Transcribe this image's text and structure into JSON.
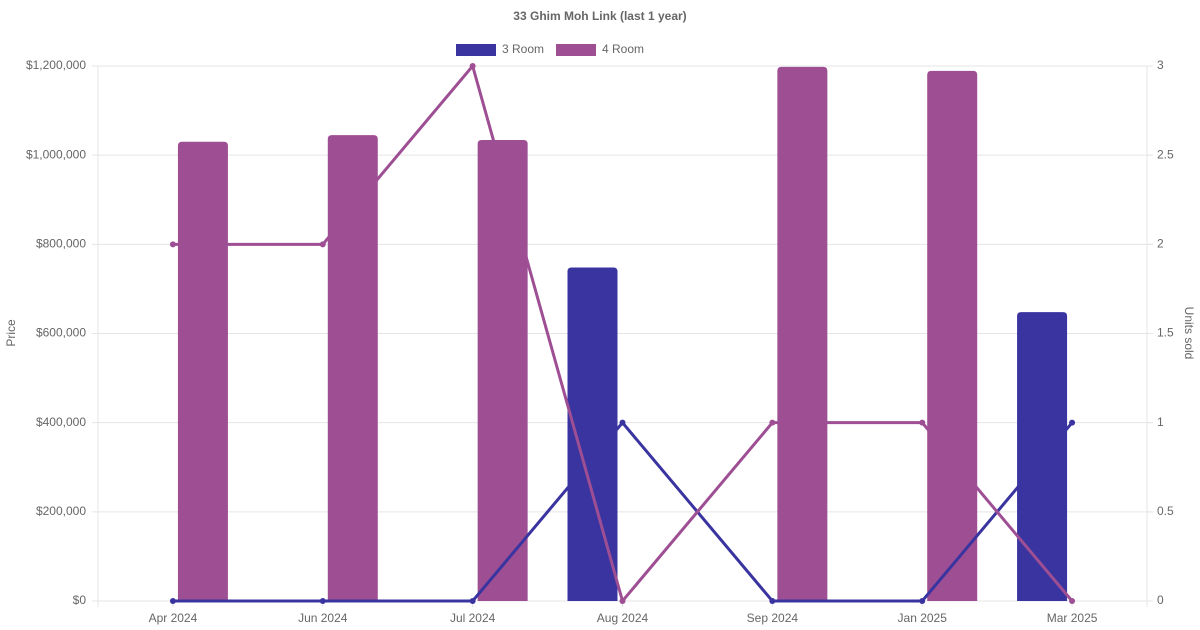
{
  "chart_data": {
    "type": "bar_line",
    "title": "33 Ghim Moh Link (last 1 year)",
    "y_label": "Price",
    "y2_label": "Units sold",
    "categories": [
      "Apr 2024",
      "Jun 2024",
      "Jul 2024",
      "Aug 2024",
      "Sep 2024",
      "Jan 2025",
      "Mar 2025"
    ],
    "series": [
      {
        "name": "3 Room",
        "color": "#3a34a0",
        "values": [
          null,
          null,
          null,
          748000,
          null,
          null,
          648000
        ],
        "units": [
          0,
          0,
          0,
          1,
          0,
          0,
          1
        ]
      },
      {
        "name": "4 Room",
        "color": "#9e4f94",
        "values": [
          1030000,
          1045000,
          1034000,
          null,
          1198000,
          1189000,
          null
        ],
        "units": [
          2,
          2,
          3,
          0,
          1,
          1,
          0
        ]
      }
    ],
    "ylim": [
      0,
      1200000
    ],
    "yticks": [
      {
        "value": 0,
        "label": "$0"
      },
      {
        "value": 200000,
        "label": "$200,000"
      },
      {
        "value": 400000,
        "label": "$400,000"
      },
      {
        "value": 600000,
        "label": "$600,000"
      },
      {
        "value": 800000,
        "label": "$800,000"
      },
      {
        "value": 1000000,
        "label": "$1,000,000"
      },
      {
        "value": 1200000,
        "label": "$1,200,000"
      }
    ],
    "y2lim": [
      0,
      3
    ],
    "y2ticks": [
      0,
      0.5,
      1,
      1.5,
      2,
      2.5,
      3
    ],
    "grid": true
  }
}
